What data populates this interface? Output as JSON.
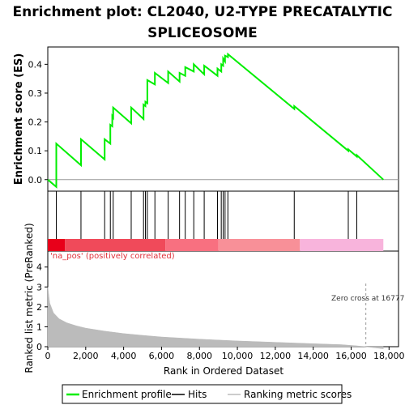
{
  "chart_data": {
    "type": "line",
    "title_line1": "Enrichment plot: CL2040, U2-TYPE PRECATALYTIC",
    "title_line2": "SPLICEOSOME",
    "xlabel": "Rank in Ordered Dataset",
    "ylabel_top": "Enrichment score (ES)",
    "ylabel_bottom": "Ranked list metric (PreRanked)",
    "xlim": [
      0,
      18500
    ],
    "es_ylim": [
      -0.04,
      0.46
    ],
    "metric_ylim": [
      0,
      4.8
    ],
    "x_ticks": [
      0,
      2000,
      4000,
      6000,
      8000,
      10000,
      12000,
      14000,
      16000,
      18000
    ],
    "x_tick_labels": [
      "0",
      "2,000",
      "4,000",
      "6,000",
      "8,000",
      "10,000",
      "12,000",
      "14,000",
      "16,000",
      "18,000"
    ],
    "es_ticks": [
      0.0,
      0.1,
      0.2,
      0.3,
      0.4
    ],
    "es_tick_labels": [
      "0.0",
      "0.1",
      "0.2",
      "0.3",
      "0.4"
    ],
    "metric_ticks": [
      0,
      1,
      2,
      3,
      4
    ],
    "metric_tick_labels": [
      "0",
      "1",
      "2",
      "3",
      "4"
    ],
    "es_profile": {
      "x": [
        0,
        450,
        450,
        1750,
        1750,
        3000,
        3000,
        3300,
        3300,
        3400,
        3400,
        3450,
        3450,
        4400,
        4400,
        5050,
        5050,
        5150,
        5150,
        5250,
        5250,
        5650,
        5650,
        6350,
        6350,
        6950,
        6950,
        7250,
        7250,
        7700,
        7700,
        8250,
        8250,
        8950,
        8950,
        9150,
        9150,
        9250,
        9250,
        9350,
        9350,
        9500,
        9500,
        13000,
        13000,
        15850,
        15850,
        16300,
        16300,
        17700
      ],
      "y": [
        0.0,
        -0.025,
        0.125,
        0.05,
        0.14,
        0.07,
        0.14,
        0.125,
        0.19,
        0.185,
        0.22,
        0.215,
        0.25,
        0.195,
        0.25,
        0.21,
        0.26,
        0.255,
        0.27,
        0.265,
        0.345,
        0.33,
        0.37,
        0.335,
        0.375,
        0.34,
        0.37,
        0.36,
        0.39,
        0.375,
        0.4,
        0.365,
        0.395,
        0.36,
        0.385,
        0.375,
        0.4,
        0.395,
        0.42,
        0.41,
        0.43,
        0.425,
        0.435,
        0.245,
        0.255,
        0.1,
        0.105,
        0.08,
        0.085,
        0.0
      ]
    },
    "hits": [
      450,
      1750,
      3000,
      3300,
      3450,
      4400,
      5050,
      5150,
      5250,
      5650,
      6350,
      6950,
      7250,
      7700,
      8250,
      8950,
      9150,
      9250,
      9350,
      9500,
      13000,
      15850,
      16300
    ],
    "ranking_metric": {
      "x": [
        0,
        100,
        300,
        600,
        1000,
        1500,
        2000,
        3000,
        4000,
        5000,
        6000,
        8000,
        10000,
        12000,
        14000,
        15500,
        16200,
        16777,
        17200,
        17700
      ],
      "y": [
        3.0,
        2.2,
        1.7,
        1.4,
        1.2,
        1.05,
        0.93,
        0.78,
        0.66,
        0.57,
        0.49,
        0.38,
        0.29,
        0.22,
        0.15,
        0.1,
        0.05,
        0.0,
        -0.05,
        -0.1
      ]
    },
    "color_bar_segments": [
      {
        "start": 0,
        "end": 900,
        "color": "#e8001a"
      },
      {
        "start": 900,
        "end": 6200,
        "color": "#f04a5a"
      },
      {
        "start": 6200,
        "end": 9000,
        "color": "#f87080"
      },
      {
        "start": 9000,
        "end": 13300,
        "color": "#f89098"
      },
      {
        "start": 13300,
        "end": 17700,
        "color": "#f8b4dc"
      }
    ],
    "pos_label": "'na_pos' (positively correlated)",
    "zero_cross_label": "Zero cross at 16777",
    "zero_cross_x": 16777,
    "legend": [
      "Enrichment profile",
      "Hits",
      "Ranking metric scores"
    ],
    "colors": {
      "es_line": "#00ee00",
      "hits": "#000000",
      "metric_fill": "#bbbbbb",
      "zero_cross": "#999999"
    }
  }
}
